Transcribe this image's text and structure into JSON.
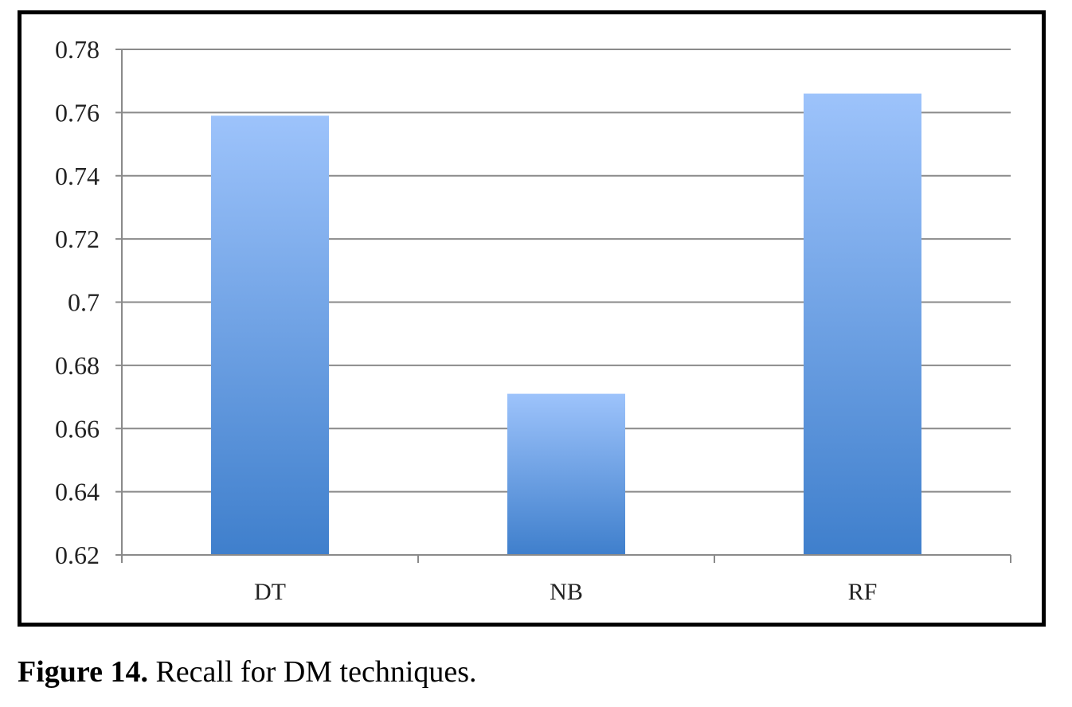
{
  "chart_data": {
    "type": "bar",
    "categories": [
      "DT",
      "NB",
      "RF"
    ],
    "values": [
      0.759,
      0.671,
      0.766
    ],
    "title": "",
    "xlabel": "",
    "ylabel": "",
    "ylim": [
      0.62,
      0.78
    ],
    "yticks": [
      0.62,
      0.64,
      0.66,
      0.68,
      0.7,
      0.72,
      0.74,
      0.76,
      0.78
    ],
    "ytick_labels": [
      "0.62",
      "0.64",
      "0.66",
      "0.68",
      "0.7",
      "0.72",
      "0.74",
      "0.76",
      "0.78"
    ],
    "grid": true,
    "legend": "none",
    "bar_color_top": "#9dc3fb",
    "bar_color_bottom": "#3f7fcc",
    "gridline_color": "#8a8a8a"
  },
  "caption": {
    "label": "Figure 14.",
    "text": " Recall for DM techniques."
  }
}
